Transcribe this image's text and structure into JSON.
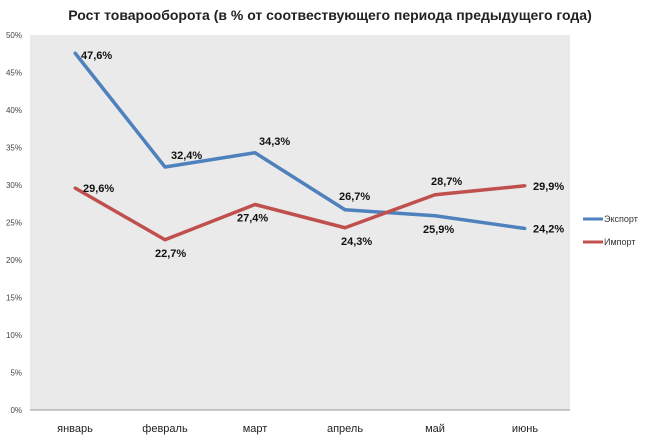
{
  "chart_data": {
    "type": "line",
    "title": "Рост товарооборота  (в % от соотвествующего периода предыдущего года)",
    "xlabel": "",
    "ylabel": "",
    "ylim": [
      0,
      50
    ],
    "yticks": [
      "0%",
      "5%",
      "10%",
      "15%",
      "20%",
      "25%",
      "30%",
      "35%",
      "40%",
      "45%",
      "50%"
    ],
    "categories": [
      "январь",
      "февраль",
      "март",
      "апрель",
      "май",
      "июнь"
    ],
    "grid": false,
    "legend_position": "right",
    "series": [
      {
        "name": "Экспорт",
        "color": "#4f81bd",
        "values": [
          47.6,
          32.4,
          34.3,
          26.7,
          25.9,
          24.2
        ],
        "labels": [
          "47,6%",
          "32,4%",
          "34,3%",
          "26,7%",
          "25,9%",
          "24,2%"
        ]
      },
      {
        "name": "Импорт",
        "color": "#c0504d",
        "values": [
          29.6,
          22.7,
          27.4,
          24.3,
          28.7,
          29.9
        ],
        "labels": [
          "29,6%",
          "22,7%",
          "27,4%",
          "24,3%",
          "28,7%",
          "29,9%"
        ]
      }
    ]
  }
}
